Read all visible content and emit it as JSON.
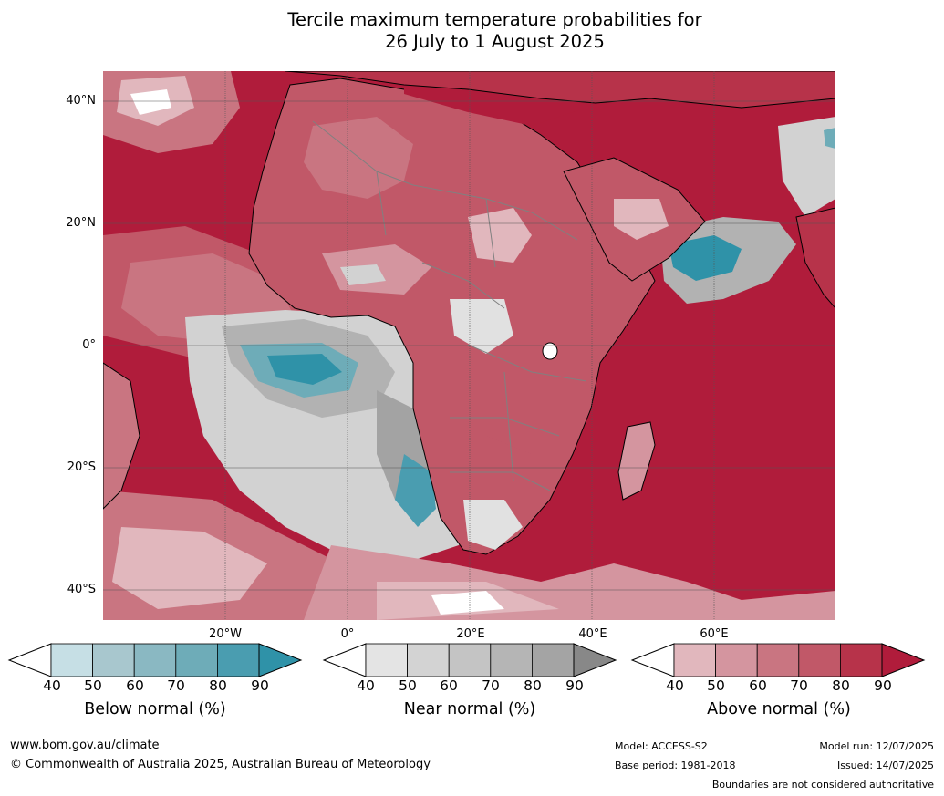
{
  "title_line1": "Tercile maximum temperature probabilities for",
  "title_line2": "26 July to 1 August 2025",
  "map": {
    "lat_labels": [
      "40°N",
      "20°N",
      "0°",
      "20°S",
      "40°S"
    ],
    "lon_labels": [
      "20°W",
      "0°",
      "20°E",
      "40°E",
      "60°E"
    ],
    "colors": {
      "above": [
        "#e1b7bd",
        "#d4959f",
        "#c97581",
        "#c15868",
        "#b7334a",
        "#b01c3b"
      ],
      "near": [
        "#e1e1e1",
        "#d2d2d2",
        "#c3c3c3",
        "#b2b2b2",
        "#a3a3a3",
        "#8a8a8a"
      ],
      "below": [
        "#c6dfe5",
        "#a8c7ce",
        "#8ab8c2",
        "#6eacb8",
        "#4a9db0",
        "#2f92a8"
      ],
      "land_outline": "#000000",
      "border": "#808080",
      "grid": "#555555"
    }
  },
  "legends": [
    {
      "title": "Below normal (%)",
      "ticks": [
        "40",
        "50",
        "60",
        "70",
        "80",
        "90"
      ],
      "colors": [
        "#ffffff",
        "#c6dfe5",
        "#a8c7ce",
        "#8ab8c2",
        "#6eacb8",
        "#4a9db0",
        "#2f92a8"
      ]
    },
    {
      "title": "Near normal (%)",
      "ticks": [
        "40",
        "50",
        "60",
        "70",
        "80",
        "90"
      ],
      "colors": [
        "#ffffff",
        "#e4e4e4",
        "#d3d3d3",
        "#c4c4c4",
        "#b5b5b5",
        "#a4a4a4",
        "#888888"
      ]
    },
    {
      "title": "Above normal (%)",
      "ticks": [
        "40",
        "50",
        "60",
        "70",
        "80",
        "90"
      ],
      "colors": [
        "#ffffff",
        "#e1b7bd",
        "#d4959f",
        "#c97581",
        "#c15868",
        "#b7334a",
        "#b01c3b"
      ]
    }
  ],
  "footer": {
    "website": "www.bom.gov.au/climate",
    "copyright": "© Commonwealth of Australia 2025, Australian Bureau of Meteorology",
    "model": "Model: ACCESS-S2",
    "base_period": "Base period: 1981-2018",
    "model_run": "Model run: 12/07/2025",
    "issued": "Issued: 14/07/2025",
    "disclaimer": "Boundaries are not considered authoritative"
  }
}
